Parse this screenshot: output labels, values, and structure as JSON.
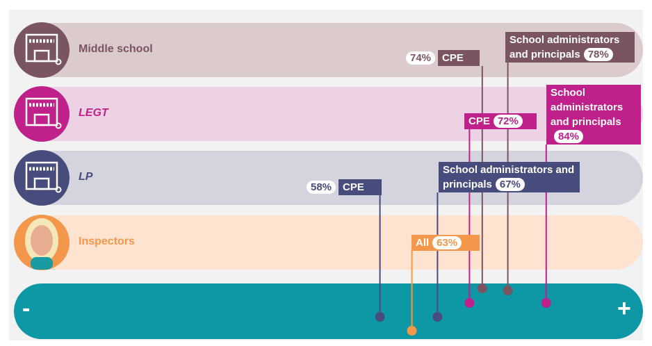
{
  "chart_data": {
    "type": "dot",
    "rows": [
      {
        "name": "Middle school",
        "color": "#7b5461",
        "band": "#dbcbcc",
        "points": [
          {
            "label": "CPE",
            "value": 74,
            "value_label": "74%"
          },
          {
            "label": "School administrators and principals",
            "value": 78,
            "value_label": "78%"
          }
        ]
      },
      {
        "name": "LEGT",
        "color": "#c0208a",
        "band": "#edd1e4",
        "points": [
          {
            "label": "CPE",
            "value": 72,
            "value_label": "72%"
          },
          {
            "label": "School administrators and principals",
            "value": 84,
            "value_label": "84%"
          }
        ]
      },
      {
        "name": "LP",
        "color": "#484c7c",
        "band": "#d4d4df",
        "points": [
          {
            "label": "CPE",
            "value": 58,
            "value_label": "58%"
          },
          {
            "label": "School administrators and principals",
            "value": 67,
            "value_label": "67%"
          }
        ]
      },
      {
        "name": "Inspectors",
        "color": "#f3984a",
        "band": "#fde3d0",
        "points": [
          {
            "label": "All",
            "value": 63,
            "value_label": "63%"
          }
        ]
      }
    ],
    "axis_color": "#0e97a4",
    "axis_labels": [
      "-",
      "+"
    ]
  }
}
